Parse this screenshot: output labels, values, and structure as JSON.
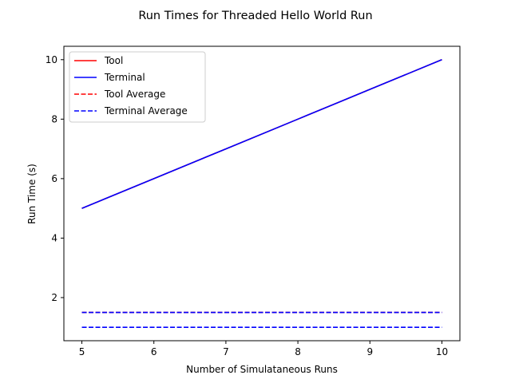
{
  "chart_data": {
    "type": "line",
    "title": "Run Times for Threaded Hello World Run",
    "xlabel": "Number of Simulataneous Runs",
    "ylabel": "Run Time (s)",
    "xlim": [
      4.75,
      10.25
    ],
    "ylim": [
      0.55,
      10.45
    ],
    "xticks": [
      5,
      6,
      7,
      8,
      9,
      10
    ],
    "yticks": [
      2,
      4,
      6,
      8,
      10
    ],
    "grid": false,
    "legend_position": "top-left",
    "series": [
      {
        "name": "Tool",
        "style": "solid",
        "color": "#ff0000",
        "x": [
          5,
          6,
          7,
          8,
          9,
          10
        ],
        "y": [
          5,
          6,
          7,
          8,
          9,
          10
        ]
      },
      {
        "name": "Terminal",
        "style": "solid",
        "color": "#0000ff",
        "x": [
          5,
          6,
          7,
          8,
          9,
          10
        ],
        "y": [
          5,
          6,
          7,
          8,
          9,
          10
        ]
      },
      {
        "name": "Tool Average",
        "style": "dashed",
        "color": "#ff0000",
        "x": [
          5,
          10
        ],
        "y": [
          1.5,
          1.5
        ]
      },
      {
        "name": "Terminal Average",
        "style": "dashed",
        "color": "#0000ff",
        "x": [
          5,
          10
        ],
        "y": [
          1.0,
          1.0
        ]
      },
      {
        "name": "",
        "style": "dashed",
        "color": "#0000ff",
        "x": [
          5,
          10
        ],
        "y": [
          1.5,
          1.5
        ]
      }
    ]
  }
}
